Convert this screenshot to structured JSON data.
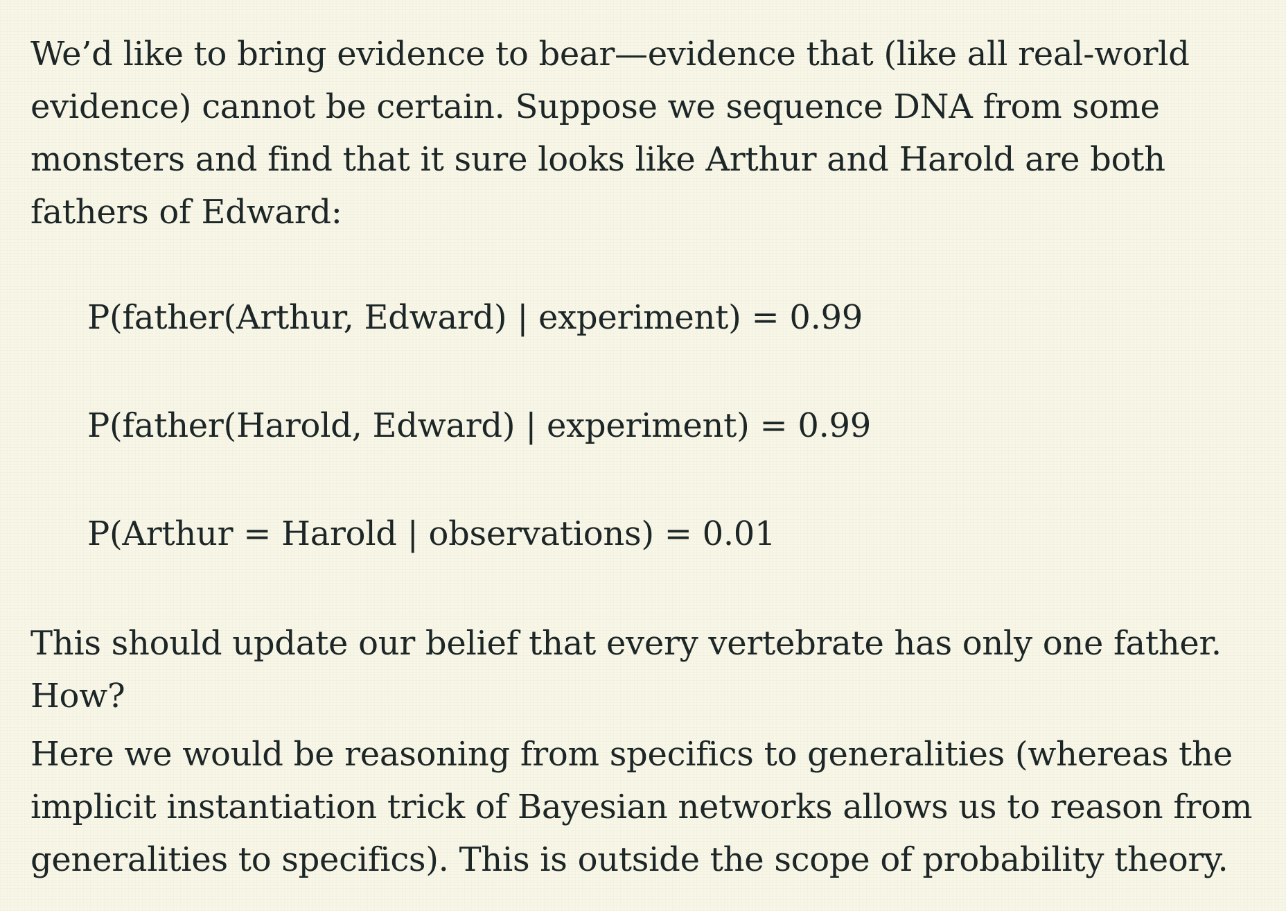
{
  "paragraphs": {
    "intro": "We’d like to bring evidence to bear—evidence that (like all real-world evidence) cannot be certain. Suppose we sequence DNA from some monsters and find that it sure looks like Arthur and Harold are both fathers of Edward:",
    "update": "This should update our belief that every vertebrate has only one father. How?",
    "conclusion": "Here we would be reasoning from specifics to generalities (whereas the implicit instantiation trick of Bayesian networks allows us to reason from generalities to specifics). This is outside the scope of probability theory."
  },
  "equations": [
    "P(father(Arthur, Edward) | experiment) = 0.99",
    "P(father(Harold, Edward) | experiment) = 0.99",
    "P(Arthur = Harold | observations) = 0.01"
  ]
}
